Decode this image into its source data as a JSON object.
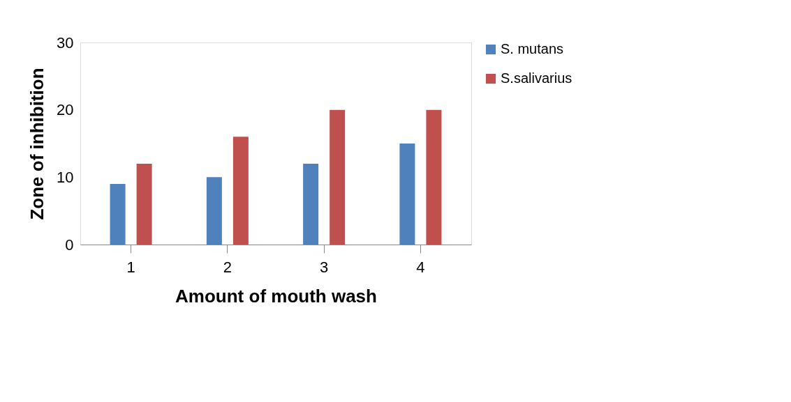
{
  "chart_data": {
    "type": "bar",
    "xlabel": "Amount of mouth wash",
    "ylabel": "Zone of inhibition",
    "categories": [
      "1",
      "2",
      "3",
      "4"
    ],
    "series": [
      {
        "name": "S. mutans",
        "color": "#4f81bd",
        "values": [
          9,
          10,
          12,
          15
        ]
      },
      {
        "name": "S.salivarius",
        "color": "#c0504d",
        "values": [
          12,
          16,
          20,
          20
        ]
      }
    ],
    "ylim": [
      0,
      30
    ],
    "yticks": [
      0,
      10,
      20,
      30
    ],
    "grid": false,
    "legend": "right"
  }
}
